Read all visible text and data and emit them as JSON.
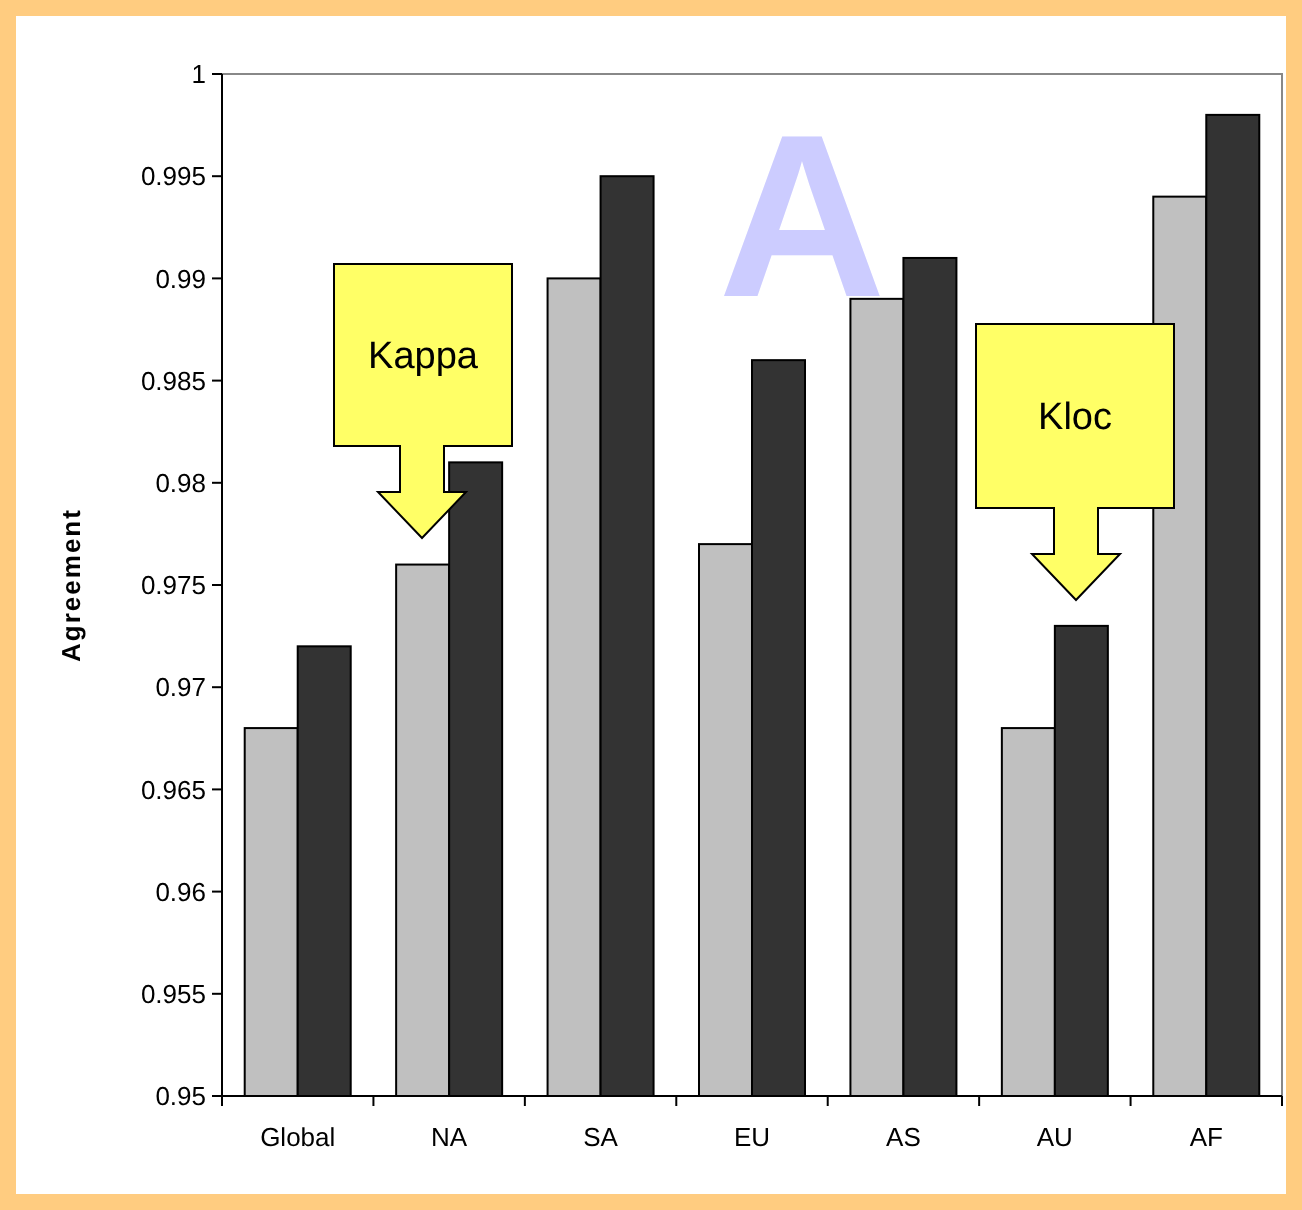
{
  "chart_data": {
    "type": "bar",
    "ylabel": "Agreement",
    "categories": [
      "Global",
      "NA",
      "SA",
      "EU",
      "AS",
      "AU",
      "AF"
    ],
    "series": [
      {
        "color": "#c0c0c0",
        "values": [
          0.968,
          0.976,
          0.99,
          0.977,
          0.989,
          0.968,
          0.994
        ]
      },
      {
        "color": "#333333",
        "values": [
          0.972,
          0.981,
          0.995,
          0.986,
          0.991,
          0.973,
          0.998
        ]
      }
    ],
    "ylim": [
      0.95,
      1
    ],
    "yticks": [
      0.95,
      0.955,
      0.96,
      0.965,
      0.97,
      0.975,
      0.98,
      0.985,
      0.99,
      0.995,
      1
    ],
    "grid": false,
    "annotations": [
      "A",
      "Kappa",
      "Kloc"
    ]
  }
}
